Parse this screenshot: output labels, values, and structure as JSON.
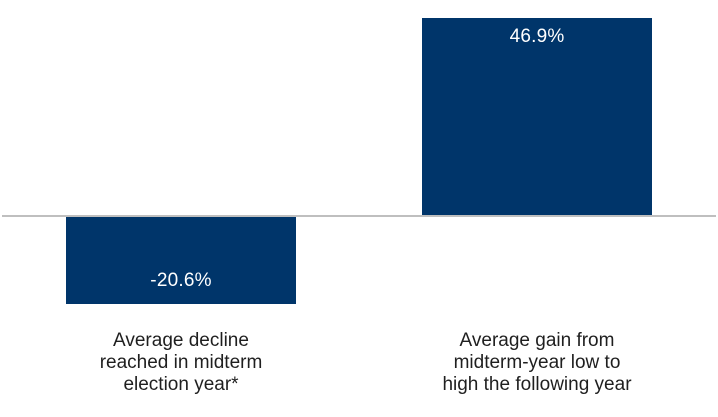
{
  "chart_data": {
    "type": "bar",
    "title": "",
    "xlabel": "",
    "ylabel": "",
    "categories": [
      "Average decline reached in midterm election year*",
      "Average gain from midterm-year low to high the following year"
    ],
    "values": [
      -20.6,
      46.9
    ],
    "data_labels": [
      "-20.6%",
      "46.9%"
    ],
    "category_lines": [
      [
        "Average decline",
        "reached in midterm",
        "election year*"
      ],
      [
        "Average gain from",
        "midterm-year low to",
        "high the following year"
      ]
    ],
    "unit": "%",
    "grid": "off",
    "legend": "none",
    "baseline_value": 0,
    "colors": {
      "bar_fill": "#00356A",
      "axis_line": "#BFBFBF",
      "data_label_text": "#FFFFFF",
      "category_label_text": "#1F1F1F",
      "background": "#FFFFFF"
    }
  }
}
